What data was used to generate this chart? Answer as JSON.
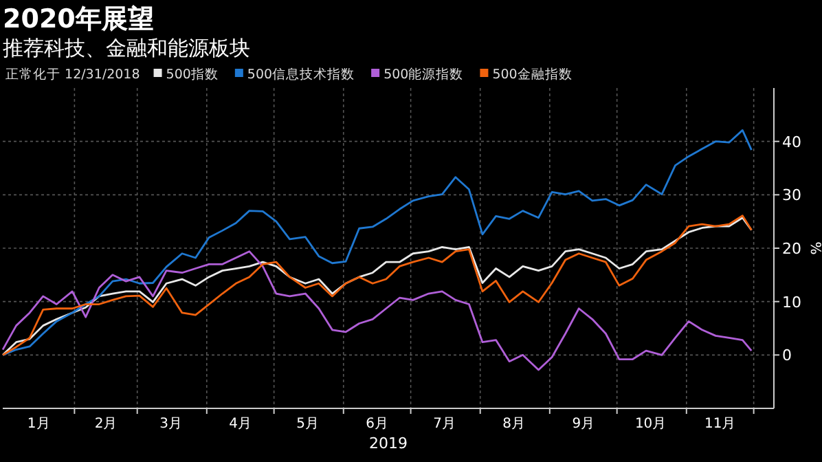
{
  "chart_data": {
    "type": "line",
    "title": "2020年展望",
    "subtitle": "推荐科技、金融和能源板块",
    "legend_title": "正常化于 12/31/2018",
    "xlabel": "2019",
    "ylabel": "%",
    "x": [
      "2018-12-31",
      "2019-01-06",
      "2019-01-12",
      "2019-01-18",
      "2019-01-24",
      "2019-01-31",
      "2019-02-06",
      "2019-02-12",
      "2019-02-18",
      "2019-02-24",
      "2019-03-02",
      "2019-03-08",
      "2019-03-14",
      "2019-03-21",
      "2019-03-27",
      "2019-04-02",
      "2019-04-08",
      "2019-04-14",
      "2019-04-20",
      "2019-04-26",
      "2019-05-02",
      "2019-05-08",
      "2019-05-15",
      "2019-05-21",
      "2019-05-27",
      "2019-06-02",
      "2019-06-08",
      "2019-06-14",
      "2019-06-20",
      "2019-06-26",
      "2019-07-02",
      "2019-07-09",
      "2019-07-15",
      "2019-07-21",
      "2019-07-27",
      "2019-08-02",
      "2019-08-08",
      "2019-08-14",
      "2019-08-20",
      "2019-08-27",
      "2019-09-02",
      "2019-09-08",
      "2019-09-14",
      "2019-09-20",
      "2019-09-26",
      "2019-10-02",
      "2019-10-08",
      "2019-10-14",
      "2019-10-21",
      "2019-10-27",
      "2019-11-02",
      "2019-11-08",
      "2019-11-14",
      "2019-11-20",
      "2019-11-26",
      "2019-11-30"
    ],
    "series": [
      {
        "name": "500指数",
        "color": "#e8e8e8",
        "values": [
          0,
          2.4,
          3,
          5.5,
          6.7,
          7.9,
          8.9,
          11,
          11.5,
          11.9,
          11.9,
          9.9,
          13.4,
          14.2,
          13,
          14.6,
          15.8,
          16.2,
          16.6,
          17.4,
          16.6,
          14.6,
          13.4,
          14.2,
          11.5,
          13.4,
          14.6,
          15.4,
          17.4,
          17.4,
          19,
          19.4,
          20.2,
          19.8,
          20.2,
          13.5,
          16.2,
          14.6,
          16.6,
          15.8,
          16.6,
          19.4,
          19.8,
          19,
          18.2,
          16.2,
          17,
          19.4,
          19.8,
          21.4,
          23,
          23.8,
          24.1,
          24.1,
          25.7,
          23.4
        ]
      },
      {
        "name": "500信息技术指数",
        "color": "#1f78d1",
        "values": [
          0,
          1,
          1.6,
          4,
          6.3,
          7.9,
          9.5,
          11,
          13.8,
          14.2,
          13.4,
          13.5,
          16.5,
          19,
          18.2,
          22,
          23.3,
          24.7,
          27,
          26.9,
          25,
          21.7,
          22.1,
          18.5,
          17.2,
          17.5,
          23.7,
          24,
          25.5,
          27.3,
          28.9,
          29.7,
          30.1,
          33.3,
          31,
          22.6,
          26,
          25.5,
          27,
          25.7,
          30.5,
          30.1,
          30.7,
          28.9,
          29.2,
          28,
          29,
          31.9,
          30.1,
          35.5,
          37.2,
          38.6,
          40,
          39.8,
          42.1,
          38.4
        ]
      },
      {
        "name": "500能源指数",
        "color": "#b05fd8",
        "values": [
          1,
          5.5,
          7.9,
          11,
          9.5,
          11.9,
          7.1,
          12.6,
          15,
          13.8,
          14.6,
          11,
          15.8,
          15.4,
          16.2,
          17,
          17,
          18.2,
          19.4,
          16.6,
          11.5,
          11,
          11.5,
          8.7,
          4.7,
          4.3,
          5.9,
          6.7,
          8.7,
          10.7,
          10.3,
          11.5,
          11.9,
          10.3,
          9.5,
          2.4,
          2.8,
          -1.2,
          0,
          -2.8,
          -0.4,
          4,
          8.7,
          6.7,
          4,
          -0.8,
          -0.8,
          0.8,
          0,
          3.2,
          6.3,
          4.7,
          3.6,
          3.2,
          2.8,
          0.8
        ]
      },
      {
        "name": "500金融指数",
        "color": "#f0620e",
        "values": [
          0,
          1.5,
          3.2,
          8.5,
          8.7,
          8.7,
          9.5,
          9.5,
          10.3,
          11,
          11.1,
          9,
          12.5,
          7.9,
          7.5,
          9.5,
          11.5,
          13.4,
          14.6,
          17,
          17.4,
          14.6,
          12.6,
          13.4,
          11,
          13.4,
          14.6,
          13.4,
          14.2,
          16.6,
          17.4,
          18.2,
          17.4,
          19.4,
          19.8,
          11.9,
          13.9,
          9.9,
          11.9,
          9.9,
          13.5,
          17.8,
          19,
          18.2,
          17.4,
          13,
          14.3,
          17.8,
          19.4,
          21,
          24.1,
          24.5,
          24.1,
          24.5,
          26.1,
          23.4
        ]
      }
    ],
    "xlim": [
      "2018-12-31",
      "2019-12-10"
    ],
    "xticks": [
      {
        "value": "2019-01-16",
        "label": "1月"
      },
      {
        "value": "2019-02-01",
        "label": null
      },
      {
        "value": "2019-02-15",
        "label": "2月"
      },
      {
        "value": "2019-03-01",
        "label": null
      },
      {
        "value": "2019-03-16",
        "label": "3月"
      },
      {
        "value": "2019-04-01",
        "label": null
      },
      {
        "value": "2019-04-16",
        "label": "4月"
      },
      {
        "value": "2019-05-01",
        "label": null
      },
      {
        "value": "2019-05-16",
        "label": "5月"
      },
      {
        "value": "2019-06-01",
        "label": null
      },
      {
        "value": "2019-06-16",
        "label": "6月"
      },
      {
        "value": "2019-07-01",
        "label": null
      },
      {
        "value": "2019-07-16",
        "label": "7月"
      },
      {
        "value": "2019-08-01",
        "label": null
      },
      {
        "value": "2019-08-16",
        "label": "8月"
      },
      {
        "value": "2019-09-01",
        "label": null
      },
      {
        "value": "2019-09-16",
        "label": "9月"
      },
      {
        "value": "2019-10-01",
        "label": null
      },
      {
        "value": "2019-10-16",
        "label": "10月"
      },
      {
        "value": "2019-11-01",
        "label": null
      },
      {
        "value": "2019-11-16",
        "label": "11月"
      },
      {
        "value": "2019-12-01",
        "label": null
      }
    ],
    "ylim": [
      -10,
      50
    ],
    "yticks": [
      0,
      10,
      20,
      30,
      40
    ],
    "grid": true,
    "legend": "top",
    "marker": "none",
    "line_style": "solid"
  }
}
